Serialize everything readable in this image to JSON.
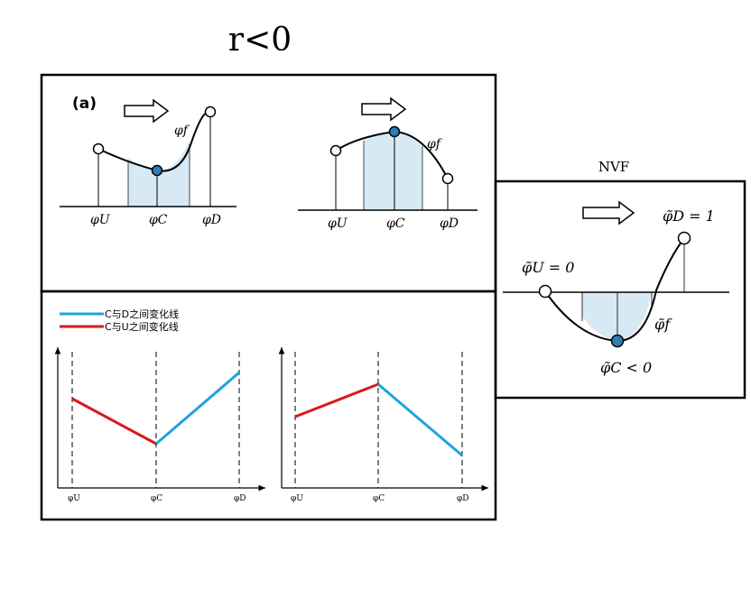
{
  "title": "r<0",
  "panel_a": {
    "label": "(a)",
    "left": {
      "phi_u": "φU",
      "phi_c": "φC",
      "phi_d": "φD",
      "phi_f": "φf"
    },
    "right": {
      "phi_u": "φU",
      "phi_c": "φC",
      "phi_d": "φD",
      "phi_f": "φf"
    }
  },
  "nvf": {
    "title": "NVF",
    "phi_u_eq": "φ̃U = 0",
    "phi_d_eq": "φ̃D = 1",
    "phi_c_ineq": "φ̃C < 0",
    "phi_f": "φ̃f"
  },
  "legend": {
    "blue": "C与D之间变化线",
    "red": "C与U之间变化线"
  },
  "lower_left": {
    "ticks": [
      "φU",
      "φC",
      "φD"
    ]
  },
  "lower_right": {
    "ticks": [
      "φU",
      "φC",
      "φD"
    ]
  },
  "colors": {
    "blue_line": "#1ea3dc",
    "red_line": "#d7191c",
    "shade": "#d6e9f4",
    "node": "#2e7db5"
  }
}
